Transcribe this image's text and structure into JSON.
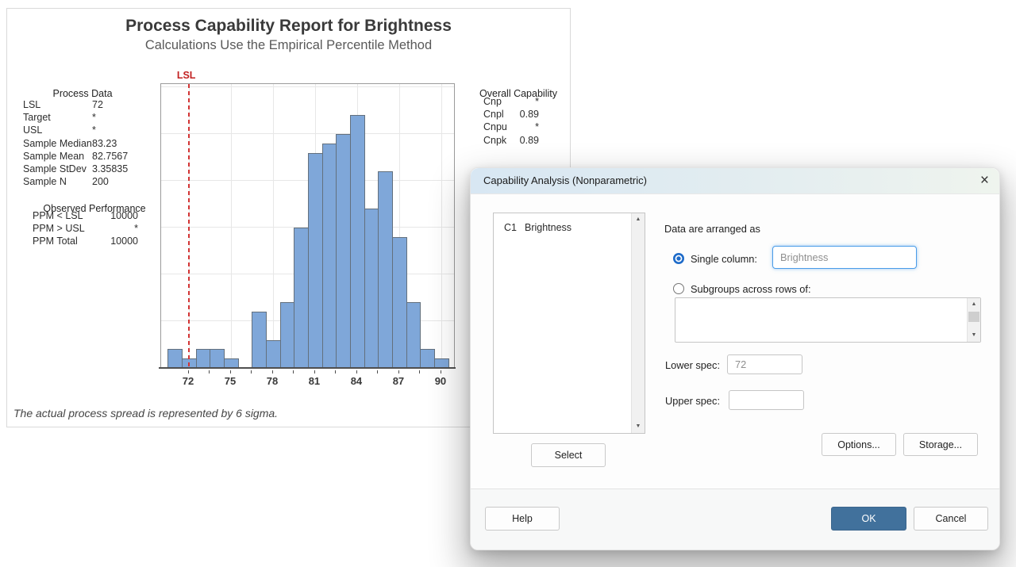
{
  "report": {
    "title": "Process Capability Report for Brightness",
    "subtitle": "Calculations Use the Empirical Percentile Method",
    "footnote": "The actual process spread is represented by 6 sigma.",
    "lsl_label": "LSL",
    "process_data": {
      "title": "Process Data",
      "rows": [
        [
          "LSL",
          "72"
        ],
        [
          "Target",
          "*"
        ],
        [
          "USL",
          "*"
        ],
        [
          "Sample Median",
          "83.23"
        ],
        [
          "Sample Mean",
          "82.7567"
        ],
        [
          "Sample StDev",
          "3.35835"
        ],
        [
          "Sample N",
          "200"
        ]
      ]
    },
    "observed_performance": {
      "title": "Observed Performance",
      "rows": [
        [
          "PPM < LSL",
          "10000"
        ],
        [
          "PPM > USL",
          "*"
        ],
        [
          "PPM Total",
          "10000"
        ]
      ]
    },
    "overall_capability": {
      "title": "Overall Capability",
      "rows": [
        [
          "Cnp",
          "*"
        ],
        [
          "Cnpl",
          "0.89"
        ],
        [
          "Cnpu",
          "*"
        ],
        [
          "Cnpk",
          "0.89"
        ]
      ]
    }
  },
  "chart_data": {
    "type": "bar",
    "title": "Process Capability Report for Brightness",
    "subtitle": "Calculations Use the Empirical Percentile Method",
    "xlabel": "",
    "ylabel": "",
    "bin_centers": [
      71,
      72,
      73,
      74,
      75,
      76,
      77,
      78,
      79,
      80,
      81,
      82,
      83,
      84,
      85,
      86,
      87,
      88,
      89,
      90
    ],
    "counts": [
      2,
      1,
      2,
      2,
      1,
      0,
      6,
      3,
      7,
      15,
      23,
      24,
      25,
      27,
      17,
      21,
      14,
      7,
      2,
      1
    ],
    "bin_width": 1,
    "sample_n": 200,
    "x_ticks": [
      72,
      75,
      78,
      81,
      84,
      87,
      90
    ],
    "minor_tick_step": 1.5,
    "xlim": [
      70.02,
      90.91
    ],
    "ylim": [
      0,
      30.34
    ],
    "y_grid_step": 5,
    "grid": true,
    "legend": false,
    "lsl": {
      "label": "LSL",
      "value": 72
    },
    "colors": {
      "bar_fill": "#7FA7D9",
      "bar_border": "#63707d",
      "lsl_line": "#d23434",
      "gridline": "#e7e7e7"
    }
  },
  "dialog": {
    "title": "Capability Analysis (Nonparametric)",
    "close_glyph": "×",
    "listbox": {
      "items": [
        {
          "id": "C1",
          "name": "Brightness"
        }
      ]
    },
    "arranged_label": "Data are arranged as",
    "single_column": {
      "label": "Single column:",
      "value": "Brightness",
      "selected": true
    },
    "subgroups": {
      "label": "Subgroups across rows of:",
      "value": "",
      "selected": false
    },
    "lower_spec": {
      "label": "Lower spec:",
      "value": "72"
    },
    "upper_spec": {
      "label": "Upper spec:",
      "value": ""
    },
    "buttons": {
      "select": "Select",
      "options": "Options...",
      "storage": "Storage...",
      "help": "Help",
      "ok": "OK",
      "cancel": "Cancel"
    },
    "accent_colors": {
      "ok_button": "#41719C",
      "radio_selected": "#1e6bc9",
      "focus_border": "#4a9ce8"
    }
  }
}
